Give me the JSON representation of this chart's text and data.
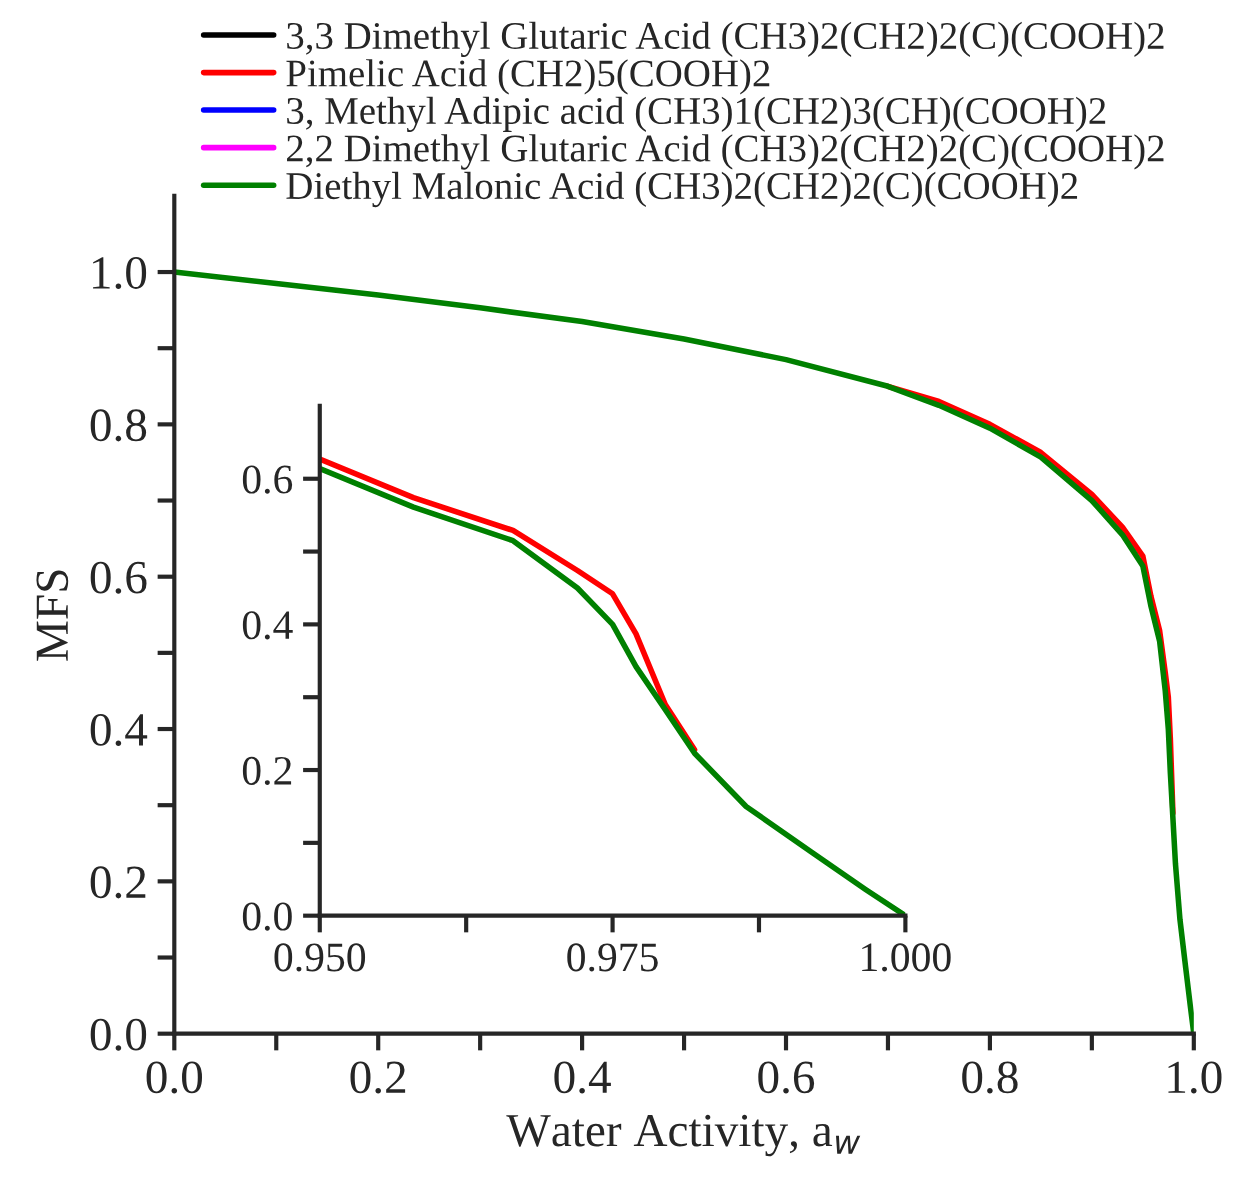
{
  "chart_data": [
    {
      "type": "line",
      "xlabel": "Water Activity, a$_{w}$",
      "ylabel": "MFS",
      "x": [
        0,
        0.1,
        0.2,
        0.3,
        0.4,
        0.5,
        0.6,
        0.7,
        0.75,
        0.8,
        0.85,
        0.9,
        0.93,
        0.95,
        0.958,
        0.9665,
        0.972,
        0.975,
        0.977,
        0.9795,
        0.982,
        0.9864,
        0.992,
        0.9966,
        1.0
      ],
      "series": [
        {
          "name": "3,3 Dimethyl Glutaric Acid (CH3)2(CH2)2(C)(COOH)2",
          "color": "#000000",
          "values": [
            null,
            null,
            null,
            null,
            null,
            null,
            null,
            null,
            null,
            null,
            null,
            null,
            null,
            null,
            null,
            null,
            null,
            null,
            null,
            null,
            null,
            null,
            null,
            null,
            null
          ]
        },
        {
          "name": "Pimelic Acid (CH2)5(COOH)2",
          "color": "#ff0000",
          "values": [
            null,
            null,
            null,
            null,
            null,
            null,
            null,
            0.85,
            0.83,
            0.8,
            0.763,
            0.708,
            0.665,
            0.627,
            0.574,
            0.529,
            0.474,
            0.442,
            0.387,
            0.29,
            null,
            null,
            null,
            null,
            null
          ]
        },
        {
          "name": "3, Methyl Adipic acid (CH3)1(CH2)3(CH)(COOH)2",
          "color": "#0000ff",
          "values": [
            null,
            null,
            null,
            null,
            null,
            null,
            null,
            null,
            null,
            null,
            null,
            null,
            null,
            null,
            null,
            null,
            null,
            null,
            null,
            null,
            null,
            null,
            null,
            null,
            null
          ]
        },
        {
          "name": "2,2 Dimethyl Glutaric Acid (CH3)2(CH2)2(C)(COOH)2",
          "color": "#ff00ff",
          "values": [
            null,
            null,
            null,
            null,
            null,
            null,
            null,
            null,
            null,
            null,
            null,
            null,
            null,
            null,
            null,
            null,
            null,
            null,
            null,
            null,
            null,
            null,
            null,
            null,
            null
          ]
        },
        {
          "name": "Diethyl Malonic Acid (CH3)2(CH2)2(C)(COOH)2",
          "color": "#008000",
          "values": [
            1.0,
            0.985,
            0.97,
            0.953,
            0.935,
            0.912,
            0.885,
            0.85,
            0.825,
            0.795,
            0.757,
            0.7,
            0.655,
            0.614,
            0.561,
            0.515,
            0.45,
            0.4,
            0.342,
            0.283,
            0.223,
            0.15,
            0.087,
            0.036,
            0.0
          ]
        }
      ],
      "xlim": [
        0,
        1.0
      ],
      "ylim": [
        0,
        1.1
      ],
      "xticks": [
        {
          "value": 0,
          "label": "0.0"
        },
        {
          "value": 0.1,
          "label": null
        },
        {
          "value": 0.2,
          "label": "0.2"
        },
        {
          "value": 0.3,
          "label": null
        },
        {
          "value": 0.4,
          "label": "0.4"
        },
        {
          "value": 0.5,
          "label": null
        },
        {
          "value": 0.6,
          "label": "0.6"
        },
        {
          "value": 0.7,
          "label": null
        },
        {
          "value": 0.8,
          "label": "0.8"
        },
        {
          "value": 0.9,
          "label": null
        },
        {
          "value": 1.0,
          "label": "1.0"
        }
      ],
      "yticks": [
        {
          "value": 0,
          "label": "0.0"
        },
        {
          "value": 0.1,
          "label": null
        },
        {
          "value": 0.2,
          "label": "0.2"
        },
        {
          "value": 0.3,
          "label": null
        },
        {
          "value": 0.4,
          "label": "0.4"
        },
        {
          "value": 0.5,
          "label": null
        },
        {
          "value": 0.6,
          "label": "0.6"
        },
        {
          "value": 0.7,
          "label": null
        },
        {
          "value": 0.8,
          "label": "0.8"
        },
        {
          "value": 0.9,
          "label": null
        },
        {
          "value": 1.0,
          "label": "1.0"
        }
      ],
      "legend": "top",
      "grid": false,
      "line_style": "solid",
      "marker": "none"
    },
    {
      "type": "line",
      "x": [
        0.95,
        0.958,
        0.9665,
        0.972,
        0.975,
        0.977,
        0.9795,
        0.982,
        0.9864,
        0.992,
        0.9966,
        1.0
      ],
      "series": [
        {
          "color": "#000000",
          "values": [
            null,
            null,
            null,
            null,
            null,
            null,
            null,
            null,
            null,
            null,
            null,
            null
          ]
        },
        {
          "color": "#ff0000",
          "values": [
            0.627,
            0.574,
            0.529,
            0.474,
            0.442,
            0.387,
            0.29,
            0.228,
            null,
            null,
            null,
            null
          ]
        },
        {
          "color": "#0000ff",
          "values": [
            null,
            null,
            null,
            null,
            null,
            null,
            null,
            null,
            null,
            null,
            null,
            null
          ]
        },
        {
          "color": "#ff00ff",
          "values": [
            null,
            null,
            null,
            null,
            null,
            null,
            null,
            null,
            null,
            null,
            null,
            null
          ]
        },
        {
          "color": "#008000",
          "values": [
            0.614,
            0.561,
            0.515,
            0.45,
            0.4,
            0.342,
            0.283,
            0.223,
            0.15,
            0.087,
            0.036,
            0.0
          ]
        }
      ],
      "xlim": [
        0.95,
        1.0
      ],
      "ylim": [
        0,
        0.7
      ],
      "xticks": [
        {
          "value": 0.95,
          "label": "0.950"
        },
        {
          "value": 0.9625,
          "label": null
        },
        {
          "value": 0.975,
          "label": "0.975"
        },
        {
          "value": 0.9875,
          "label": null
        },
        {
          "value": 1.0,
          "label": "1.000"
        }
      ],
      "yticks": [
        {
          "value": 0,
          "label": "0.0"
        },
        {
          "value": 0.1,
          "label": null
        },
        {
          "value": 0.2,
          "label": "0.2"
        },
        {
          "value": 0.3,
          "label": null
        },
        {
          "value": 0.4,
          "label": "0.4"
        },
        {
          "value": 0.5,
          "label": null
        },
        {
          "value": 0.6,
          "label": "0.6"
        }
      ],
      "grid": false,
      "line_style": "solid",
      "marker": "none"
    }
  ]
}
